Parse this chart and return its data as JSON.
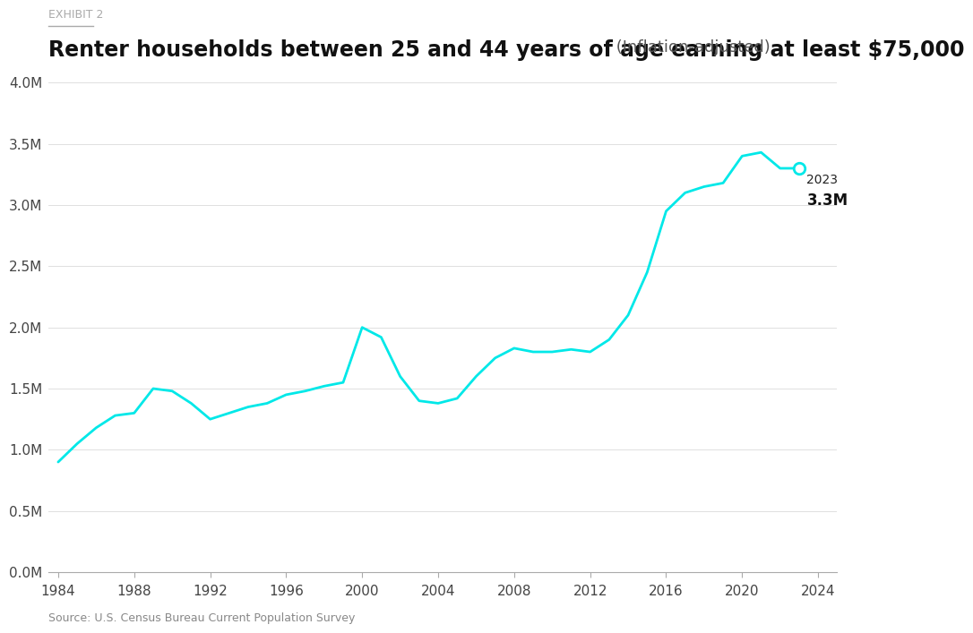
{
  "title_exhibit": "EXHIBIT 2",
  "title_main": "Renter households between 25 and 44 years of age earning at least $75,000",
  "title_suffix": " (Inflation-adjusted)",
  "source": "Source: U.S. Census Bureau Current Population Survey",
  "line_color": "#00E8E8",
  "background_color": "#ffffff",
  "years": [
    1984,
    1985,
    1986,
    1987,
    1988,
    1989,
    1990,
    1991,
    1992,
    1993,
    1994,
    1995,
    1996,
    1997,
    1998,
    1999,
    2000,
    2001,
    2002,
    2003,
    2004,
    2005,
    2006,
    2007,
    2008,
    2009,
    2010,
    2011,
    2012,
    2013,
    2014,
    2015,
    2016,
    2017,
    2018,
    2019,
    2020,
    2021,
    2022,
    2023
  ],
  "values": [
    0.9,
    1.05,
    1.18,
    1.28,
    1.3,
    1.5,
    1.48,
    1.38,
    1.25,
    1.3,
    1.35,
    1.38,
    1.45,
    1.48,
    1.52,
    1.55,
    2.0,
    1.92,
    1.6,
    1.4,
    1.38,
    1.42,
    1.6,
    1.75,
    1.83,
    1.8,
    1.8,
    1.82,
    1.8,
    1.9,
    2.1,
    2.45,
    2.95,
    3.1,
    3.15,
    3.18,
    3.4,
    3.43,
    3.3,
    3.3
  ],
  "ylim": [
    0,
    4.0
  ],
  "xlim": [
    1983.5,
    2025
  ],
  "yticks": [
    0.0,
    0.5,
    1.0,
    1.5,
    2.0,
    2.5,
    3.0,
    3.5,
    4.0
  ],
  "ytick_labels": [
    "0.0M",
    "0.5M",
    "1.0M",
    "1.5M",
    "2.0M",
    "2.5M",
    "3.0M",
    "3.5M",
    "4.0M"
  ],
  "xticks": [
    1984,
    1988,
    1992,
    1996,
    2000,
    2004,
    2008,
    2012,
    2016,
    2020,
    2024
  ],
  "annotation_year": "2023",
  "annotation_value": "3.3M",
  "last_point_x": 2023,
  "last_point_y": 3.3,
  "exhibit_fontsize": 9,
  "title_fontsize": 17,
  "suffix_fontsize": 13,
  "tick_fontsize": 11,
  "source_fontsize": 9
}
